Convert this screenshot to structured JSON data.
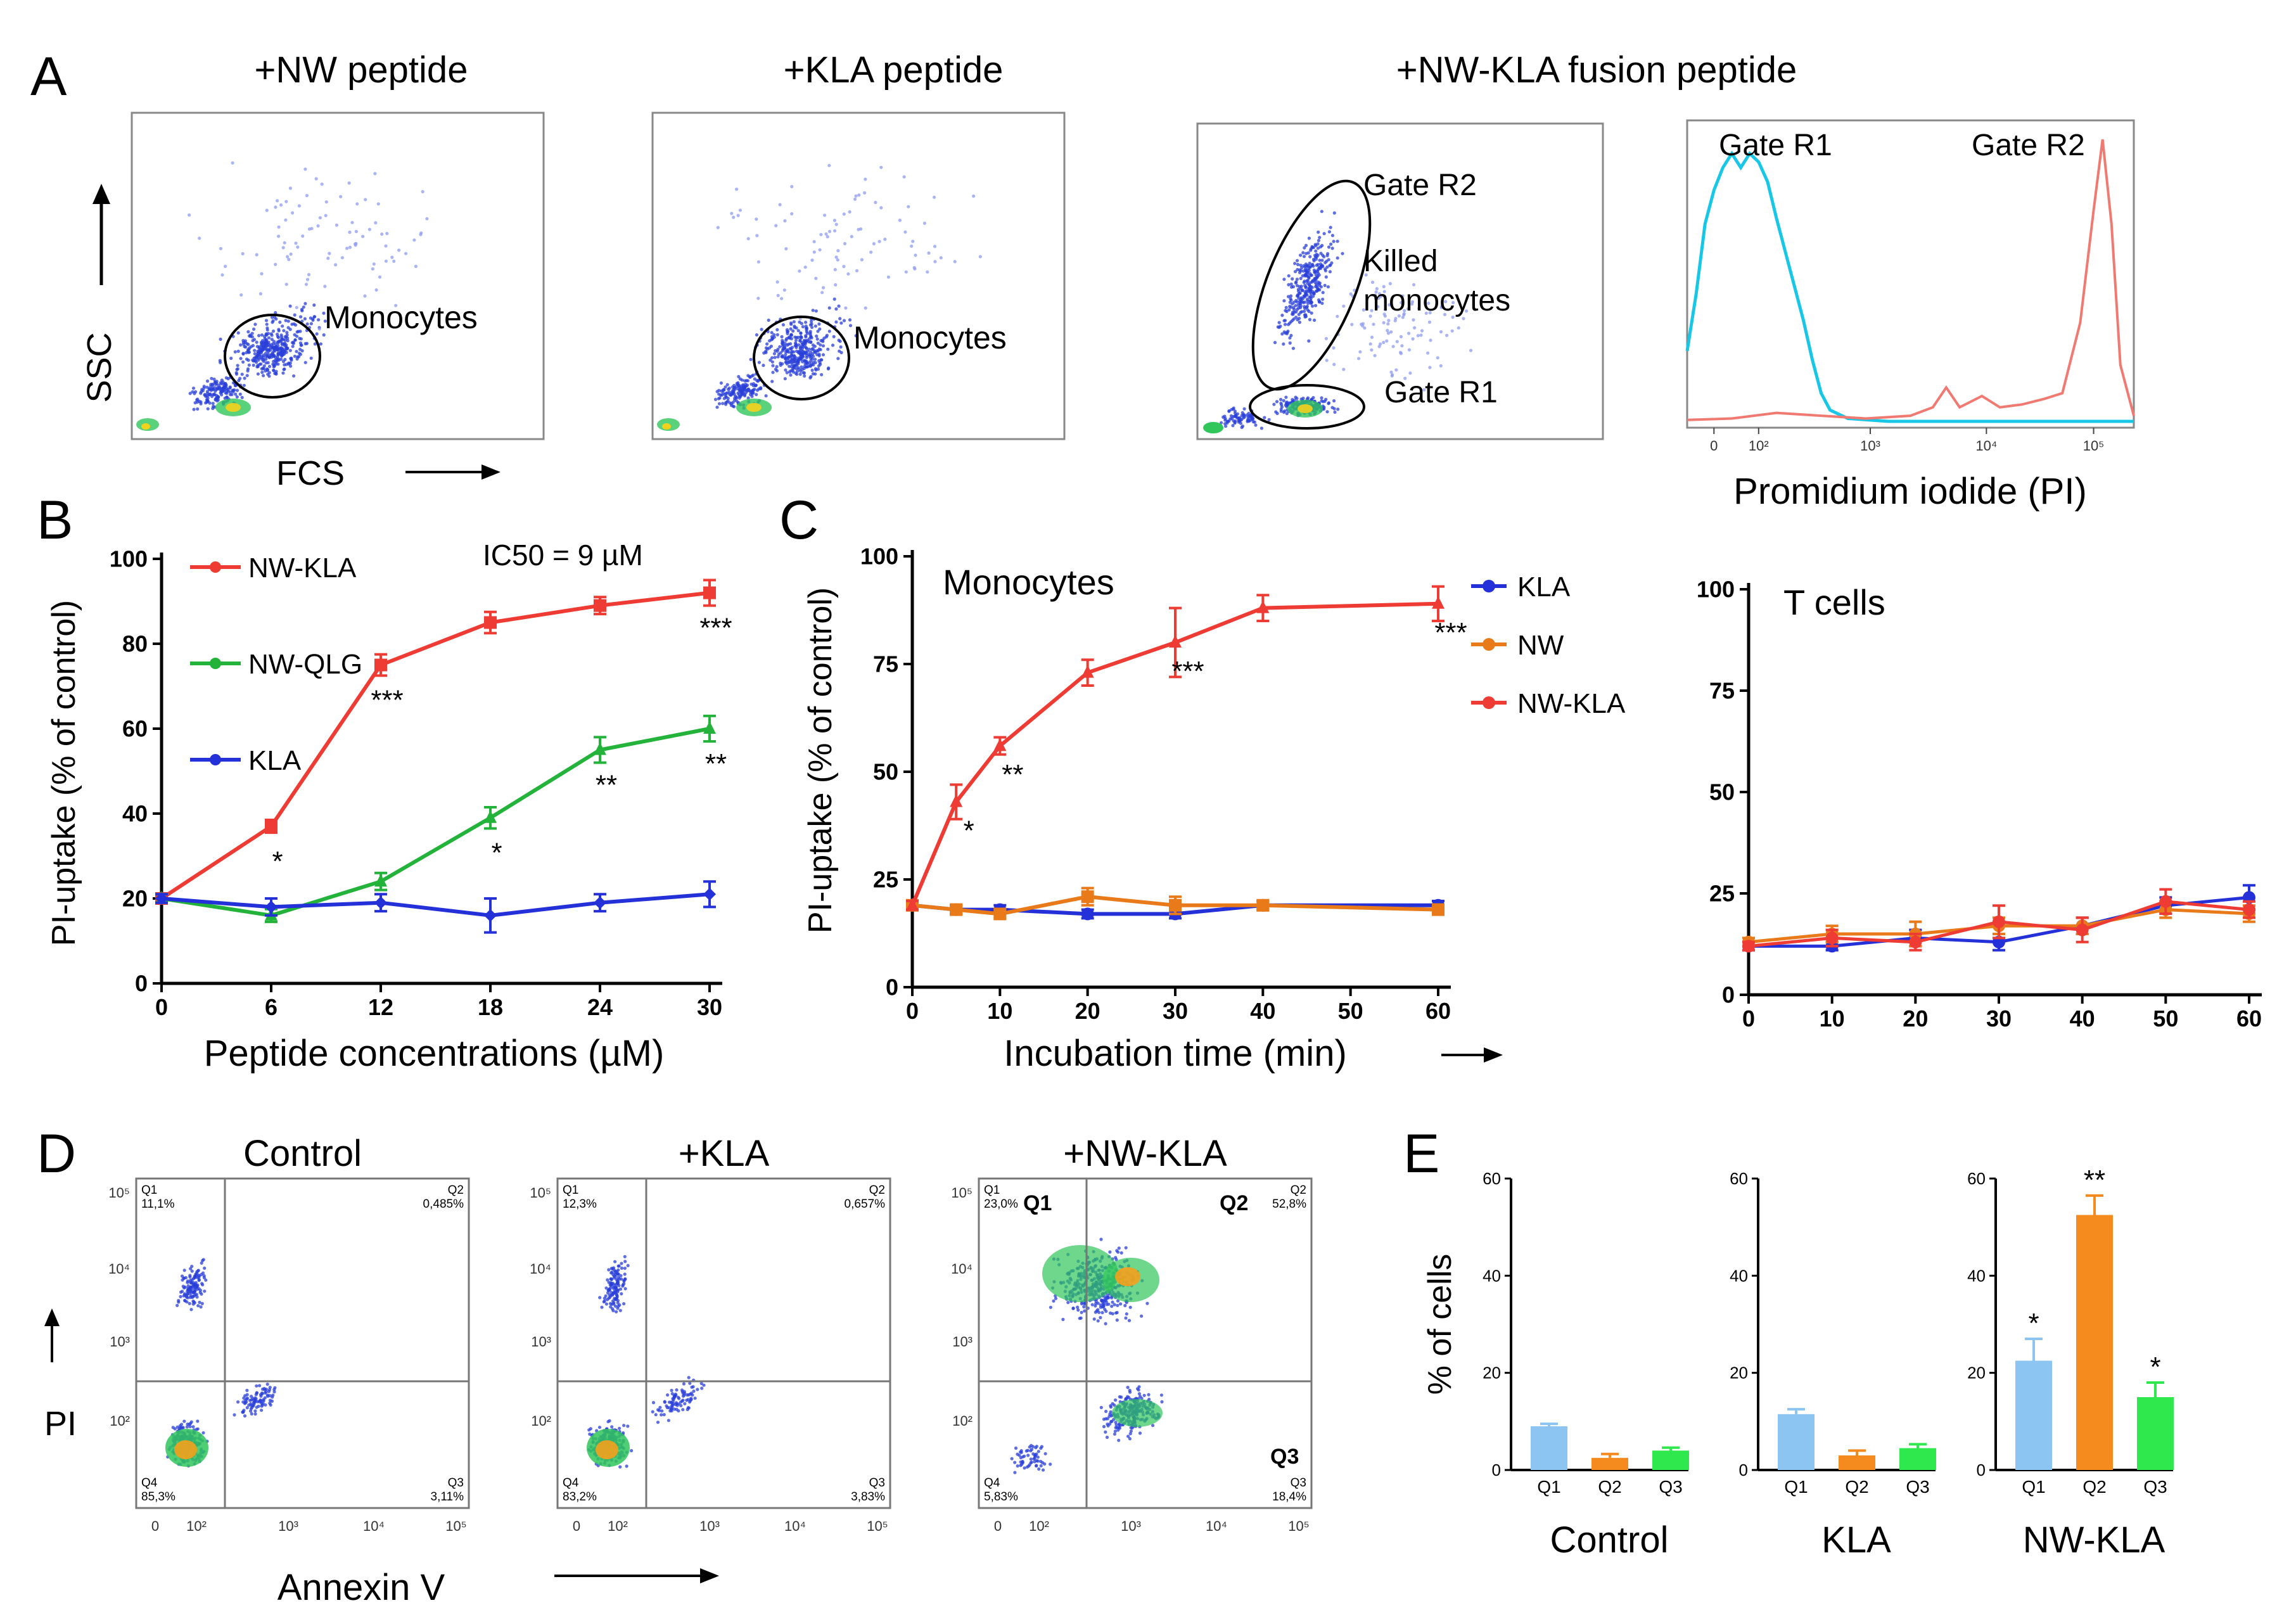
{
  "panels": {
    "a": {
      "label": "A",
      "titles": [
        "+NW peptide",
        "+KLA peptide",
        "+NW-KLA fusion peptide"
      ],
      "yaxis": "SSC",
      "xaxis": "FCS",
      "monocytes_label": "Monocytes",
      "gate_r2": "Gate R2",
      "gate_r1": "Gate R1",
      "killed_1": "Killed",
      "killed_2": "monocytes",
      "hist_gate_r1": "Gate R1",
      "hist_gate_r2": "Gate R2",
      "hist_xlabel": "Promidium iodide (PI)",
      "hist_ticks": [
        "0",
        "10²",
        "10³",
        "10⁴",
        "10⁵"
      ],
      "colors": {
        "r1": "#18c7e6",
        "r2": "#f07a72",
        "dots": "#2a3fd8"
      }
    },
    "b": {
      "label": "B"
    },
    "c": {
      "label": "C"
    },
    "d": {
      "label": "D",
      "titles": [
        "Control",
        "+KLA",
        "+NW-KLA"
      ],
      "ylabel": "PI",
      "xlabel": "Annexin V",
      "quadrants": [
        {
          "q1": "11,1%",
          "q2": "0,485%",
          "q3": "3,11%",
          "q4": "85,3%"
        },
        {
          "q1": "12,3%",
          "q2": "0,657%",
          "q3": "3,83%",
          "q4": "83,2%"
        },
        {
          "q1": "23,0%",
          "q2": "52,8%",
          "q3": "18,4%",
          "q4": "5,83%"
        }
      ],
      "q_names": [
        "Q1",
        "Q2",
        "Q3",
        "Q4"
      ],
      "yticks": [
        "10⁵",
        "10⁴",
        "10³",
        "10²"
      ],
      "xticks": [
        "0",
        "10²",
        "10³",
        "10⁴",
        "10⁵"
      ]
    },
    "e": {
      "label": "E"
    }
  },
  "chart_data": [
    {
      "id": "B",
      "type": "line",
      "title": "",
      "xlabel": "Peptide concentrations (µM)",
      "ylabel": "PI-uptake (% of control)",
      "annotation": "IC50 = 9 µM",
      "x": [
        0,
        6,
        12,
        18,
        24,
        30
      ],
      "xlim": [
        0,
        30
      ],
      "ylim": [
        0,
        100
      ],
      "xticks": [
        0,
        6,
        12,
        18,
        24,
        30
      ],
      "yticks": [
        0,
        20,
        40,
        60,
        80,
        100
      ],
      "series": [
        {
          "name": "NW-KLA",
          "color": "#ee3b34",
          "marker": "square",
          "values": [
            20,
            37,
            75,
            85,
            89,
            92
          ],
          "errors": [
            1,
            1.5,
            2.5,
            2.5,
            2,
            3
          ],
          "stars": [
            "",
            "*",
            "***",
            "",
            "",
            "***"
          ]
        },
        {
          "name": "NW-QLG",
          "color": "#23b33a",
          "marker": "triangle",
          "values": [
            20,
            16,
            24,
            39,
            55,
            60
          ],
          "errors": [
            1,
            1.5,
            2,
            2.5,
            3,
            3
          ],
          "stars": [
            "",
            "",
            "",
            "*",
            "**",
            "**"
          ]
        },
        {
          "name": "KLA",
          "color": "#2430d8",
          "marker": "diamond",
          "values": [
            20,
            18,
            19,
            16,
            19,
            21
          ],
          "errors": [
            1,
            2,
            2,
            4,
            2,
            3
          ],
          "stars": [
            "",
            "",
            "",
            "",
            "",
            ""
          ]
        }
      ]
    },
    {
      "id": "C-monocytes",
      "type": "line",
      "title": "Monocytes",
      "xlabel": "Incubation time (min)",
      "ylabel": "PI-uptake (% of control)",
      "x": [
        0,
        5,
        10,
        20,
        30,
        40,
        60
      ],
      "xlim": [
        0,
        60
      ],
      "ylim": [
        0,
        100
      ],
      "xticks": [
        0,
        10,
        20,
        30,
        40,
        50,
        60
      ],
      "yticks": [
        0,
        25,
        50,
        75,
        100
      ],
      "series": [
        {
          "name": "KLA",
          "color": "#2430d8",
          "marker": "circle",
          "values": [
            19,
            18,
            18,
            17,
            17,
            19,
            19
          ],
          "errors": [
            1,
            1,
            1,
            1,
            1,
            1,
            1
          ]
        },
        {
          "name": "NW",
          "color": "#e87a1a",
          "marker": "square",
          "values": [
            19,
            18,
            17,
            21,
            19,
            19,
            18
          ],
          "errors": [
            1,
            1,
            1,
            2,
            2,
            1,
            1
          ]
        },
        {
          "name": "NW-KLA",
          "color": "#ee3b34",
          "marker": "triangle",
          "values": [
            19,
            43,
            56,
            73,
            80,
            88,
            89
          ],
          "errors": [
            1,
            4,
            2,
            3,
            8,
            3,
            4
          ],
          "stars": [
            "",
            "*",
            "**",
            "",
            "***",
            "",
            "***"
          ]
        }
      ]
    },
    {
      "id": "C-tcells",
      "type": "line",
      "title": "T cells",
      "x": [
        0,
        10,
        20,
        30,
        40,
        50,
        60
      ],
      "xlim": [
        0,
        60
      ],
      "ylim": [
        0,
        100
      ],
      "xticks": [
        0,
        10,
        20,
        30,
        40,
        50,
        60
      ],
      "yticks": [
        0,
        25,
        50,
        75,
        100
      ],
      "series": [
        {
          "name": "KLA",
          "color": "#2430d8",
          "values": [
            12,
            12,
            14,
            13,
            17,
            22,
            24
          ],
          "errors": [
            1,
            1,
            2,
            2,
            2,
            2,
            3
          ]
        },
        {
          "name": "NW",
          "color": "#e87a1a",
          "values": [
            13,
            15,
            15,
            17,
            17,
            21,
            20
          ],
          "errors": [
            1,
            2,
            3,
            2,
            2,
            2,
            2
          ]
        },
        {
          "name": "NW-KLA",
          "color": "#ee3b34",
          "values": [
            12,
            14,
            13,
            18,
            16,
            23,
            21
          ],
          "errors": [
            1,
            2,
            2,
            4,
            3,
            3,
            2
          ]
        }
      ]
    },
    {
      "id": "E",
      "type": "bar",
      "ylabel": "% of cells",
      "ylim": [
        0,
        60
      ],
      "yticks": [
        0,
        20,
        40,
        60
      ],
      "categories": [
        "Q1",
        "Q2",
        "Q3"
      ],
      "colors": [
        "#8cc4f2",
        "#f58a1f",
        "#2ee84e"
      ],
      "groups": [
        {
          "name": "Control",
          "values": [
            9,
            2.5,
            4
          ],
          "errors": [
            0.5,
            0.8,
            0.6
          ],
          "stars": [
            "",
            "",
            ""
          ]
        },
        {
          "name": "KLA",
          "values": [
            11.5,
            3,
            4.5
          ],
          "errors": [
            1,
            1,
            0.8
          ],
          "stars": [
            "",
            "",
            ""
          ]
        },
        {
          "name": "NW-KLA",
          "values": [
            22.5,
            52.5,
            15
          ],
          "errors": [
            4.5,
            4,
            3
          ],
          "stars": [
            "*",
            "**",
            "*"
          ]
        }
      ]
    }
  ]
}
